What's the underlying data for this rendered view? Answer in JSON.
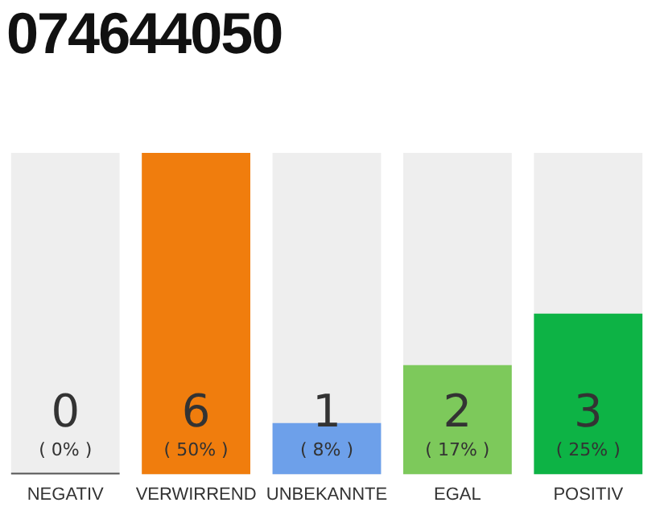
{
  "chart_data": {
    "type": "bar",
    "title": "074644050",
    "categories": [
      "NEGATIV",
      "VERWIRREND",
      "UNBEKANNTE",
      "EGAL",
      "POSITIV"
    ],
    "values": [
      0,
      50,
      8,
      17,
      25
    ],
    "colors": [
      "#555555",
      "#f07d0d",
      "#6da0ea",
      "#7dc95b",
      "#0db345"
    ],
    "value_labels": [
      "( 0% )",
      "( 50% )",
      "( 8% )",
      "( 17% )",
      "( 25% )"
    ],
    "annotations": [
      "0",
      "6",
      "1",
      "2",
      "3"
    ],
    "ylim": [
      0,
      50
    ],
    "tick_labels": "x",
    "grid": false,
    "legend": false
  }
}
